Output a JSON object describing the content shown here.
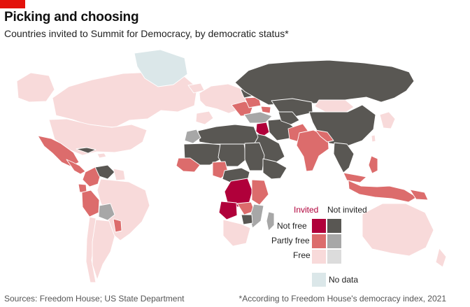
{
  "header": {
    "title": "Picking and choosing",
    "subtitle": "Countries invited to Summit for Democracy, by democratic status*"
  },
  "legend": {
    "columns": {
      "invited": "Invited",
      "not_invited": "Not invited"
    },
    "rows": [
      {
        "label": "Not free",
        "invited_color": "#b0003a",
        "not_invited_color": "#595753"
      },
      {
        "label": "Partly free",
        "invited_color": "#dc6c6c",
        "not_invited_color": "#a7a7a7"
      },
      {
        "label": "Free",
        "invited_color": "#f8dada",
        "not_invited_color": "#dcdcdc"
      }
    ],
    "no_data": {
      "label": "No data",
      "color": "#dbe7e9"
    }
  },
  "colors": {
    "accent": "#e3120b",
    "invited_not_free": "#b0003a",
    "invited_partly_free": "#dc6c6c",
    "invited_free": "#f8dada",
    "not_invited_not_free": "#595753",
    "not_invited_partly_free": "#a7a7a7",
    "not_invited_free": "#dcdcdc",
    "no_data": "#dbe7e9"
  },
  "footer": {
    "source": "Sources: Freedom House; US State Department",
    "note": "*According to Freedom House's democracy index, 2021"
  }
}
